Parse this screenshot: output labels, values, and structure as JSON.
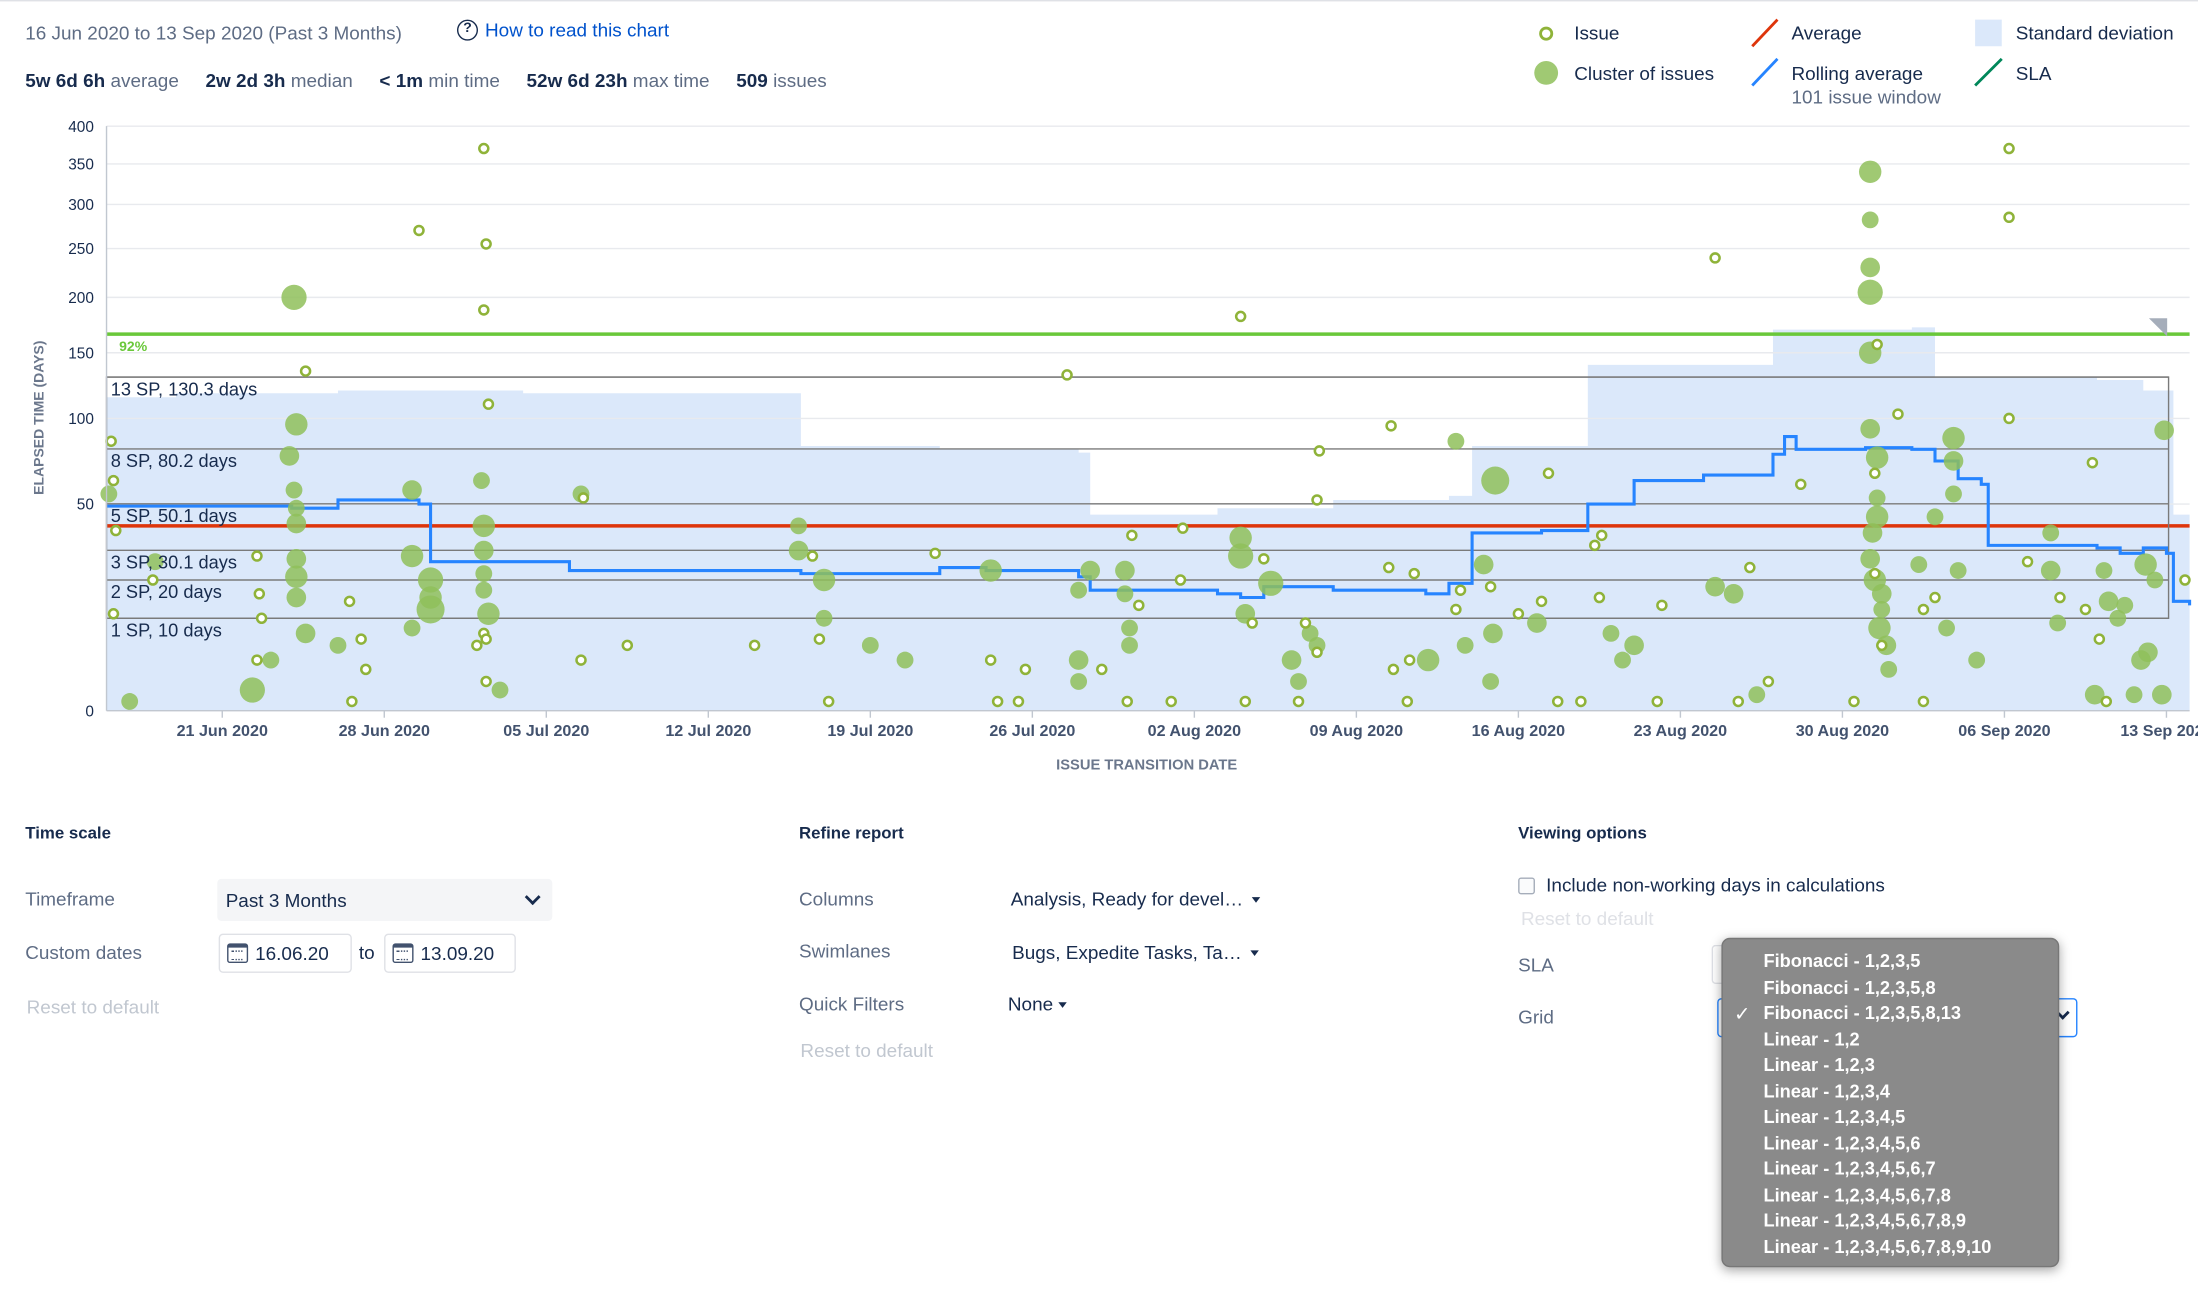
{
  "header": {
    "date_range": "16 Jun 2020 to 13 Sep 2020 (Past 3 Months)",
    "how_to_link": "How to read this chart",
    "stats": [
      {
        "value": "5w 6d 6h",
        "label": "average"
      },
      {
        "value": "2w 2d 3h",
        "label": "median"
      },
      {
        "value": "< 1m",
        "label": "min time"
      },
      {
        "value": "52w 6d 23h",
        "label": "max time"
      },
      {
        "value": "509",
        "label": "issues"
      }
    ]
  },
  "legend": {
    "issue": "Issue",
    "cluster": "Cluster of issues",
    "average": "Average",
    "rolling": "Rolling average",
    "rolling_sub": "101 issue window",
    "stddev": "Standard deviation",
    "sla": "SLA"
  },
  "colors": {
    "issue": "#8fb339",
    "cluster": "#8fbf5a",
    "average": "#de350b",
    "rolling": "#2684ff",
    "stddev": "#dbe8fa",
    "sla": "#6ac83a",
    "grid": "#7a7a7a"
  },
  "chart_data": {
    "type": "scatter",
    "title": "",
    "xlabel": "ISSUE TRANSITION DATE",
    "ylabel": "ELAPSED TIME (DAYS)",
    "x_domain": [
      "2020-06-16",
      "2020-09-14"
    ],
    "x_ticks": [
      {
        "date": "2020-06-21",
        "label": "21 Jun 2020"
      },
      {
        "date": "2020-06-28",
        "label": "28 Jun 2020"
      },
      {
        "date": "2020-07-05",
        "label": "05 Jul 2020"
      },
      {
        "date": "2020-07-12",
        "label": "12 Jul 2020"
      },
      {
        "date": "2020-07-19",
        "label": "19 Jul 2020"
      },
      {
        "date": "2020-07-26",
        "label": "26 Jul 2020"
      },
      {
        "date": "2020-08-02",
        "label": "02 Aug 2020"
      },
      {
        "date": "2020-08-09",
        "label": "09 Aug 2020"
      },
      {
        "date": "2020-08-16",
        "label": "16 Aug 2020"
      },
      {
        "date": "2020-08-23",
        "label": "23 Aug 2020"
      },
      {
        "date": "2020-08-30",
        "label": "30 Aug 2020"
      },
      {
        "date": "2020-09-06",
        "label": "06 Sep 2020"
      },
      {
        "date": "2020-09-13",
        "label": "13 Sep 2020"
      }
    ],
    "y_scale": "sqrt",
    "y_max": 400,
    "y_ticks": [
      0,
      50,
      100,
      150,
      200,
      250,
      300,
      350,
      400
    ],
    "sla": {
      "value": 166,
      "label": "92%"
    },
    "average": 40,
    "grid_lines": [
      {
        "value": 130.3,
        "label": "13 SP, 130.3 days"
      },
      {
        "value": 80.2,
        "label": "8 SP, 80.2 days"
      },
      {
        "value": 50.1,
        "label": "5 SP, 50.1 days"
      },
      {
        "value": 30.1,
        "label": "3 SP, 30.1 days"
      },
      {
        "value": 20,
        "label": "2 SP, 20 days"
      },
      {
        "value": 10,
        "label": "1 SP, 10 days"
      }
    ],
    "rolling_average": [
      {
        "x": 0.0,
        "y": 49
      },
      {
        "x": 5.0,
        "y": 49
      },
      {
        "x": 8.0,
        "y": 48
      },
      {
        "x": 10.0,
        "y": 52
      },
      {
        "x": 13.5,
        "y": 50
      },
      {
        "x": 14.0,
        "y": 26
      },
      {
        "x": 20.0,
        "y": 23
      },
      {
        "x": 30.0,
        "y": 22
      },
      {
        "x": 36.0,
        "y": 24
      },
      {
        "x": 38.0,
        "y": 23
      },
      {
        "x": 42.0,
        "y": 21
      },
      {
        "x": 42.5,
        "y": 17
      },
      {
        "x": 48.0,
        "y": 16
      },
      {
        "x": 49.0,
        "y": 15
      },
      {
        "x": 50.0,
        "y": 18
      },
      {
        "x": 53.0,
        "y": 17
      },
      {
        "x": 57.0,
        "y": 16
      },
      {
        "x": 58.0,
        "y": 19
      },
      {
        "x": 59.0,
        "y": 37
      },
      {
        "x": 62.0,
        "y": 38
      },
      {
        "x": 64.0,
        "y": 50
      },
      {
        "x": 66.0,
        "y": 62
      },
      {
        "x": 69.0,
        "y": 65
      },
      {
        "x": 72.0,
        "y": 77
      },
      {
        "x": 72.5,
        "y": 88
      },
      {
        "x": 73.0,
        "y": 80
      },
      {
        "x": 76.0,
        "y": 81
      },
      {
        "x": 78.0,
        "y": 80
      },
      {
        "x": 79.0,
        "y": 73
      },
      {
        "x": 80.0,
        "y": 63
      },
      {
        "x": 81.0,
        "y": 60
      },
      {
        "x": 81.3,
        "y": 32
      },
      {
        "x": 86.0,
        "y": 31
      },
      {
        "x": 87.0,
        "y": 29
      },
      {
        "x": 88.0,
        "y": 31
      },
      {
        "x": 89.0,
        "y": 29
      },
      {
        "x": 89.3,
        "y": 14
      },
      {
        "x": 90.0,
        "y": 13
      }
    ],
    "std_dev_upper": [
      {
        "x": 0.0,
        "y": 115
      },
      {
        "x": 3.0,
        "y": 118
      },
      {
        "x": 10.0,
        "y": 120
      },
      {
        "x": 18.0,
        "y": 118
      },
      {
        "x": 30.0,
        "y": 82
      },
      {
        "x": 36.0,
        "y": 80
      },
      {
        "x": 42.0,
        "y": 78
      },
      {
        "x": 42.5,
        "y": 45
      },
      {
        "x": 48.0,
        "y": 48
      },
      {
        "x": 53.0,
        "y": 52
      },
      {
        "x": 58.0,
        "y": 54
      },
      {
        "x": 59.0,
        "y": 82
      },
      {
        "x": 63.0,
        "y": 82
      },
      {
        "x": 64.0,
        "y": 140
      },
      {
        "x": 72.0,
        "y": 170
      },
      {
        "x": 78.0,
        "y": 172
      },
      {
        "x": 79.0,
        "y": 130
      },
      {
        "x": 86.0,
        "y": 128
      },
      {
        "x": 88.0,
        "y": 120
      },
      {
        "x": 89.3,
        "y": 45
      },
      {
        "x": 90.0,
        "y": 45
      }
    ],
    "issues": [
      {
        "x": 0.2,
        "y": 85
      },
      {
        "x": 0.3,
        "y": 62
      },
      {
        "x": 0.4,
        "y": 38
      },
      {
        "x": 0.3,
        "y": 11
      },
      {
        "x": 2.0,
        "y": 20
      },
      {
        "x": 6.5,
        "y": 28
      },
      {
        "x": 6.6,
        "y": 16
      },
      {
        "x": 6.7,
        "y": 10
      },
      {
        "x": 6.5,
        "y": 3
      },
      {
        "x": 8.6,
        "y": 135
      },
      {
        "x": 10.5,
        "y": 14
      },
      {
        "x": 11.0,
        "y": 6
      },
      {
        "x": 11.2,
        "y": 2
      },
      {
        "x": 10.6,
        "y": 0.1
      },
      {
        "x": 13.5,
        "y": 270
      },
      {
        "x": 16.0,
        "y": 5
      },
      {
        "x": 16.4,
        "y": 1
      },
      {
        "x": 16.3,
        "y": 7
      },
      {
        "x": 16.3,
        "y": 370
      },
      {
        "x": 16.4,
        "y": 255
      },
      {
        "x": 16.3,
        "y": 188
      },
      {
        "x": 16.5,
        "y": 110
      },
      {
        "x": 16.4,
        "y": 6
      },
      {
        "x": 20.6,
        "y": 53
      },
      {
        "x": 20.5,
        "y": 3
      },
      {
        "x": 22.5,
        "y": 5
      },
      {
        "x": 28.0,
        "y": 5
      },
      {
        "x": 30.5,
        "y": 28
      },
      {
        "x": 30.8,
        "y": 6
      },
      {
        "x": 31.2,
        "y": 0.1
      },
      {
        "x": 35.8,
        "y": 29
      },
      {
        "x": 38.5,
        "y": 0.1
      },
      {
        "x": 38.2,
        "y": 3
      },
      {
        "x": 39.7,
        "y": 2
      },
      {
        "x": 39.4,
        "y": 0.1
      },
      {
        "x": 41.5,
        "y": 132
      },
      {
        "x": 43.0,
        "y": 2
      },
      {
        "x": 44.3,
        "y": 36
      },
      {
        "x": 44.1,
        "y": 0.1
      },
      {
        "x": 44.6,
        "y": 13
      },
      {
        "x": 46.5,
        "y": 39
      },
      {
        "x": 46.0,
        "y": 0.1
      },
      {
        "x": 46.4,
        "y": 20
      },
      {
        "x": 49.0,
        "y": 182
      },
      {
        "x": 49.2,
        "y": 0.1
      },
      {
        "x": 49.5,
        "y": 9
      },
      {
        "x": 50.0,
        "y": 27
      },
      {
        "x": 52.4,
        "y": 79
      },
      {
        "x": 52.3,
        "y": 52
      },
      {
        "x": 51.5,
        "y": 0.1
      },
      {
        "x": 51.8,
        "y": 9
      },
      {
        "x": 52.3,
        "y": 4
      },
      {
        "x": 55.4,
        "y": 24
      },
      {
        "x": 55.5,
        "y": 95
      },
      {
        "x": 55.6,
        "y": 2
      },
      {
        "x": 56.5,
        "y": 22
      },
      {
        "x": 56.2,
        "y": 0.1
      },
      {
        "x": 56.3,
        "y": 3
      },
      {
        "x": 58.3,
        "y": 12
      },
      {
        "x": 58.5,
        "y": 17
      },
      {
        "x": 59.8,
        "y": 18
      },
      {
        "x": 61.0,
        "y": 11
      },
      {
        "x": 62.0,
        "y": 14
      },
      {
        "x": 62.3,
        "y": 66
      },
      {
        "x": 62.7,
        "y": 0.1
      },
      {
        "x": 63.7,
        "y": 0.1
      },
      {
        "x": 64.3,
        "y": 32
      },
      {
        "x": 64.6,
        "y": 36
      },
      {
        "x": 64.5,
        "y": 15
      },
      {
        "x": 67.2,
        "y": 13
      },
      {
        "x": 67.0,
        "y": 0.1
      },
      {
        "x": 69.5,
        "y": 240
      },
      {
        "x": 71.0,
        "y": 24
      },
      {
        "x": 71.8,
        "y": 1
      },
      {
        "x": 70.5,
        "y": 0.1
      },
      {
        "x": 73.2,
        "y": 60
      },
      {
        "x": 76.5,
        "y": 157
      },
      {
        "x": 76.4,
        "y": 66
      },
      {
        "x": 77.4,
        "y": 103
      },
      {
        "x": 76.4,
        "y": 22
      },
      {
        "x": 76.7,
        "y": 5
      },
      {
        "x": 75.5,
        "y": 0.1
      },
      {
        "x": 78.5,
        "y": 0.1
      },
      {
        "x": 78.5,
        "y": 12
      },
      {
        "x": 79.0,
        "y": 15
      },
      {
        "x": 82.2,
        "y": 370
      },
      {
        "x": 82.2,
        "y": 285
      },
      {
        "x": 82.2,
        "y": 100
      },
      {
        "x": 83.0,
        "y": 26
      },
      {
        "x": 84.4,
        "y": 15
      },
      {
        "x": 85.8,
        "y": 72
      },
      {
        "x": 86.1,
        "y": 6
      },
      {
        "x": 85.5,
        "y": 12
      },
      {
        "x": 86.4,
        "y": 0.1
      },
      {
        "x": 89.8,
        "y": 20
      }
    ],
    "clusters": [
      {
        "x": 0.1,
        "y": 55,
        "r": 6
      },
      {
        "x": 1.0,
        "y": 0.1,
        "r": 6
      },
      {
        "x": 2.1,
        "y": 26,
        "r": 6
      },
      {
        "x": 8.1,
        "y": 200,
        "r": 9
      },
      {
        "x": 8.2,
        "y": 96,
        "r": 8
      },
      {
        "x": 7.9,
        "y": 76,
        "r": 7
      },
      {
        "x": 8.1,
        "y": 57,
        "r": 6
      },
      {
        "x": 8.2,
        "y": 48,
        "r": 6
      },
      {
        "x": 8.2,
        "y": 41,
        "r": 7
      },
      {
        "x": 8.2,
        "y": 27,
        "r": 7
      },
      {
        "x": 8.2,
        "y": 21,
        "r": 8
      },
      {
        "x": 8.2,
        "y": 15,
        "r": 7
      },
      {
        "x": 8.6,
        "y": 7,
        "r": 7
      },
      {
        "x": 7.1,
        "y": 3,
        "r": 6
      },
      {
        "x": 6.3,
        "y": 0.5,
        "r": 9
      },
      {
        "x": 10.0,
        "y": 5,
        "r": 6
      },
      {
        "x": 13.2,
        "y": 57,
        "r": 7
      },
      {
        "x": 13.2,
        "y": 28,
        "r": 8
      },
      {
        "x": 14.0,
        "y": 20,
        "r": 9
      },
      {
        "x": 14.0,
        "y": 15,
        "r": 8
      },
      {
        "x": 14.0,
        "y": 12,
        "r": 10
      },
      {
        "x": 13.2,
        "y": 8,
        "r": 6
      },
      {
        "x": 16.2,
        "y": 62,
        "r": 6
      },
      {
        "x": 16.3,
        "y": 40,
        "r": 8
      },
      {
        "x": 16.3,
        "y": 30,
        "r": 7
      },
      {
        "x": 16.3,
        "y": 22,
        "r": 6
      },
      {
        "x": 16.3,
        "y": 17,
        "r": 6
      },
      {
        "x": 16.5,
        "y": 11,
        "r": 8
      },
      {
        "x": 17.0,
        "y": 0.5,
        "r": 6
      },
      {
        "x": 20.5,
        "y": 55,
        "r": 6
      },
      {
        "x": 29.9,
        "y": 40,
        "r": 6
      },
      {
        "x": 29.9,
        "y": 30,
        "r": 7
      },
      {
        "x": 31.0,
        "y": 20,
        "r": 8
      },
      {
        "x": 31.0,
        "y": 10,
        "r": 6
      },
      {
        "x": 33.0,
        "y": 5,
        "r": 6
      },
      {
        "x": 34.5,
        "y": 3,
        "r": 6
      },
      {
        "x": 38.2,
        "y": 23,
        "r": 8
      },
      {
        "x": 42.0,
        "y": 17,
        "r": 6
      },
      {
        "x": 42.5,
        "y": 23,
        "r": 7
      },
      {
        "x": 44.0,
        "y": 23,
        "r": 7
      },
      {
        "x": 44.0,
        "y": 16,
        "r": 6
      },
      {
        "x": 44.2,
        "y": 8,
        "r": 6
      },
      {
        "x": 44.2,
        "y": 5,
        "r": 6
      },
      {
        "x": 42.0,
        "y": 3,
        "r": 7
      },
      {
        "x": 42.0,
        "y": 1,
        "r": 6
      },
      {
        "x": 49.0,
        "y": 35,
        "r": 8
      },
      {
        "x": 49.0,
        "y": 28,
        "r": 9
      },
      {
        "x": 50.3,
        "y": 19,
        "r": 9
      },
      {
        "x": 49.2,
        "y": 11,
        "r": 7
      },
      {
        "x": 52.0,
        "y": 7,
        "r": 6
      },
      {
        "x": 52.3,
        "y": 5,
        "r": 6
      },
      {
        "x": 51.2,
        "y": 3,
        "r": 7
      },
      {
        "x": 51.5,
        "y": 1,
        "r": 6
      },
      {
        "x": 60.0,
        "y": 62,
        "r": 10
      },
      {
        "x": 58.3,
        "y": 85,
        "r": 6
      },
      {
        "x": 59.5,
        "y": 25,
        "r": 7
      },
      {
        "x": 61.8,
        "y": 9,
        "r": 7
      },
      {
        "x": 59.9,
        "y": 7,
        "r": 7
      },
      {
        "x": 58.7,
        "y": 5,
        "r": 6
      },
      {
        "x": 57.1,
        "y": 3,
        "r": 8
      },
      {
        "x": 59.8,
        "y": 1,
        "r": 6
      },
      {
        "x": 66.0,
        "y": 5,
        "r": 7
      },
      {
        "x": 65.0,
        "y": 7,
        "r": 6
      },
      {
        "x": 65.5,
        "y": 3,
        "r": 6
      },
      {
        "x": 76.2,
        "y": 340,
        "r": 8
      },
      {
        "x": 76.2,
        "y": 282,
        "r": 6
      },
      {
        "x": 76.2,
        "y": 230,
        "r": 7
      },
      {
        "x": 76.2,
        "y": 205,
        "r": 9
      },
      {
        "x": 76.2,
        "y": 150,
        "r": 8
      },
      {
        "x": 76.2,
        "y": 93,
        "r": 7
      },
      {
        "x": 76.5,
        "y": 75,
        "r": 8
      },
      {
        "x": 76.5,
        "y": 53,
        "r": 6
      },
      {
        "x": 76.5,
        "y": 44,
        "r": 8
      },
      {
        "x": 76.3,
        "y": 37,
        "r": 7
      },
      {
        "x": 76.2,
        "y": 27,
        "r": 7
      },
      {
        "x": 76.4,
        "y": 20,
        "r": 8
      },
      {
        "x": 76.7,
        "y": 16,
        "r": 7
      },
      {
        "x": 76.7,
        "y": 12,
        "r": 6
      },
      {
        "x": 76.6,
        "y": 8,
        "r": 8
      },
      {
        "x": 76.9,
        "y": 5,
        "r": 7
      },
      {
        "x": 77.0,
        "y": 2,
        "r": 6
      },
      {
        "x": 79.0,
        "y": 44,
        "r": 6
      },
      {
        "x": 78.3,
        "y": 25,
        "r": 6
      },
      {
        "x": 79.8,
        "y": 87,
        "r": 8
      },
      {
        "x": 79.8,
        "y": 73,
        "r": 7
      },
      {
        "x": 79.8,
        "y": 55,
        "r": 6
      },
      {
        "x": 80.0,
        "y": 23,
        "r": 6
      },
      {
        "x": 79.5,
        "y": 8,
        "r": 6
      },
      {
        "x": 80.8,
        "y": 3,
        "r": 6
      },
      {
        "x": 84.0,
        "y": 37,
        "r": 6
      },
      {
        "x": 84.0,
        "y": 23,
        "r": 7
      },
      {
        "x": 84.3,
        "y": 9,
        "r": 6
      },
      {
        "x": 86.3,
        "y": 23,
        "r": 6
      },
      {
        "x": 86.5,
        "y": 14,
        "r": 7
      },
      {
        "x": 86.9,
        "y": 10,
        "r": 6
      },
      {
        "x": 87.2,
        "y": 13,
        "r": 6
      },
      {
        "x": 87.9,
        "y": 3,
        "r": 7
      },
      {
        "x": 88.1,
        "y": 25,
        "r": 8
      },
      {
        "x": 88.5,
        "y": 20,
        "r": 6
      },
      {
        "x": 88.9,
        "y": 92,
        "r": 7
      },
      {
        "x": 88.8,
        "y": 0.3,
        "r": 7
      },
      {
        "x": 87.6,
        "y": 0.3,
        "r": 6
      },
      {
        "x": 85.9,
        "y": 0.3,
        "r": 7
      },
      {
        "x": 71.3,
        "y": 0.3,
        "r": 6
      },
      {
        "x": 70.3,
        "y": 16,
        "r": 7
      },
      {
        "x": 69.5,
        "y": 18,
        "r": 7
      },
      {
        "x": 88.2,
        "y": 4,
        "r": 7
      }
    ]
  },
  "controls": {
    "time_scale": {
      "title": "Time scale",
      "timeframe_label": "Timeframe",
      "timeframe_value": "Past 3 Months",
      "custom_dates_label": "Custom dates",
      "date_from": "16.06.20",
      "date_to_sep": "to",
      "date_to": "13.09.20",
      "reset": "Reset to default"
    },
    "refine": {
      "title": "Refine report",
      "columns_label": "Columns",
      "columns_value": "Analysis, Ready for devel…",
      "swimlanes_label": "Swimlanes",
      "swimlanes_value": "Bugs, Expedite Tasks, Ta…",
      "quick_filters_label": "Quick Filters",
      "quick_filters_value": "None",
      "reset": "Reset to default"
    },
    "viewing": {
      "title": "Viewing options",
      "nonworking_label": "Include non-working days in calculations",
      "reset": "Reset to default",
      "sla_label": "SLA",
      "grid_label": "Grid"
    },
    "grid_dropdown": {
      "selected_index": 2,
      "options": [
        "Fibonacci - 1,2,3,5",
        "Fibonacci - 1,2,3,5,8",
        "Fibonacci - 1,2,3,5,8,13",
        "Linear - 1,2",
        "Linear - 1,2,3",
        "Linear - 1,2,3,4",
        "Linear - 1,2,3,4,5",
        "Linear - 1,2,3,4,5,6",
        "Linear - 1,2,3,4,5,6,7",
        "Linear - 1,2,3,4,5,6,7,8",
        "Linear - 1,2,3,4,5,6,7,8,9",
        "Linear - 1,2,3,4,5,6,7,8,9,10"
      ]
    }
  }
}
